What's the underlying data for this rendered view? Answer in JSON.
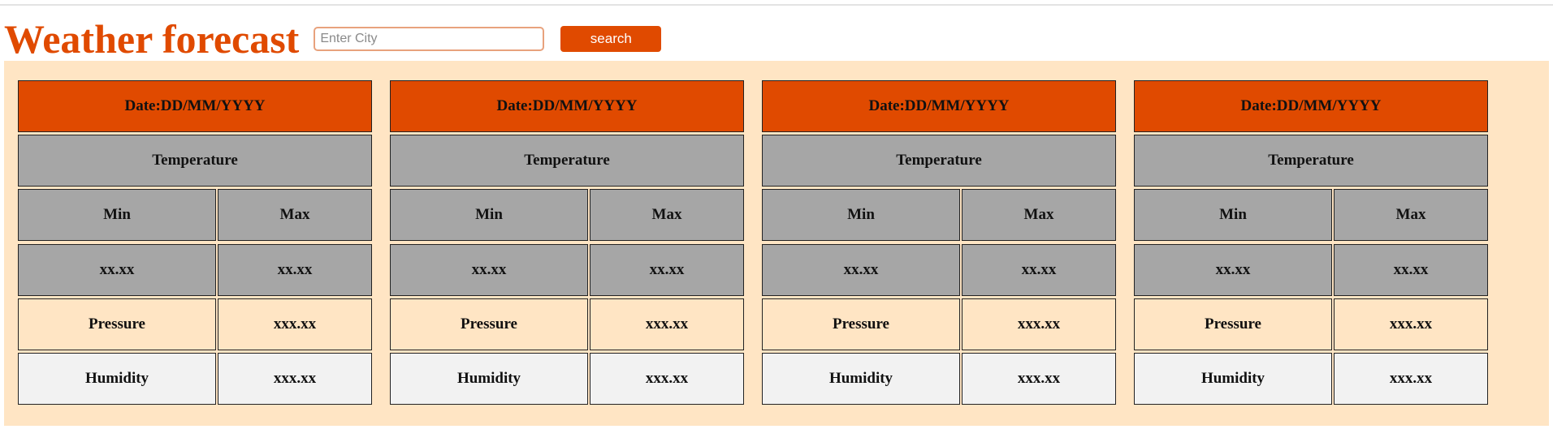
{
  "header": {
    "title": "Weather forecast",
    "search": {
      "placeholder": "Enter City",
      "value": ""
    },
    "search_button_label": "search"
  },
  "colors": {
    "accent": "#e04a00",
    "panel_bg": "#ffe5c4",
    "gray_cell": "#a6a6a6",
    "light_cell": "#f2f2f2"
  },
  "forecast": [
    {
      "date": "Date:DD/MM/YYYY",
      "temperature_label": "Temperature",
      "min_label": "Min",
      "max_label": "Max",
      "min_value": "xx.xx",
      "max_value": "xx.xx",
      "pressure_label": "Pressure",
      "pressure_value": "xxx.xx",
      "humidity_label": "Humidity",
      "humidity_value": "xxx.xx"
    },
    {
      "date": "Date:DD/MM/YYYY",
      "temperature_label": "Temperature",
      "min_label": "Min",
      "max_label": "Max",
      "min_value": "xx.xx",
      "max_value": "xx.xx",
      "pressure_label": "Pressure",
      "pressure_value": "xxx.xx",
      "humidity_label": "Humidity",
      "humidity_value": "xxx.xx"
    },
    {
      "date": "Date:DD/MM/YYYY",
      "temperature_label": "Temperature",
      "min_label": "Min",
      "max_label": "Max",
      "min_value": "xx.xx",
      "max_value": "xx.xx",
      "pressure_label": "Pressure",
      "pressure_value": "xxx.xx",
      "humidity_label": "Humidity",
      "humidity_value": "xxx.xx"
    },
    {
      "date": "Date:DD/MM/YYYY",
      "temperature_label": "Temperature",
      "min_label": "Min",
      "max_label": "Max",
      "min_value": "xx.xx",
      "max_value": "xx.xx",
      "pressure_label": "Pressure",
      "pressure_value": "xxx.xx",
      "humidity_label": "Humidity",
      "humidity_value": "xxx.xx"
    }
  ]
}
